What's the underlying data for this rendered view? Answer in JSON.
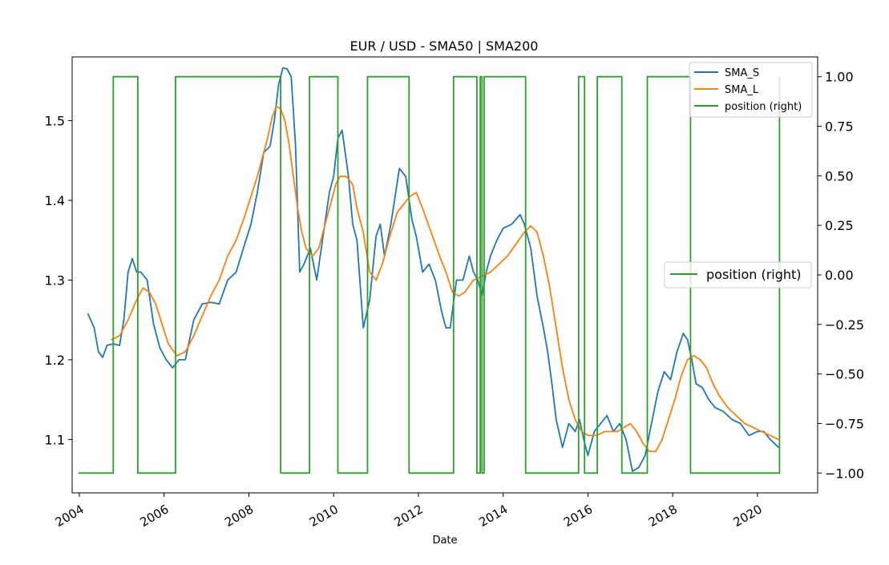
{
  "chart_data": {
    "type": "line",
    "title": "EUR / USD - SMA50 | SMA200",
    "xlabel": "Date",
    "ylabel": "",
    "x_ticks": [
      "2004",
      "2006",
      "2008",
      "2010",
      "2012",
      "2014",
      "2016",
      "2018",
      "2020"
    ],
    "y_ticks": [
      "1.1",
      "1.2",
      "1.3",
      "1.4",
      "1.5"
    ],
    "y2_ticks": [
      "−1.00",
      "−0.75",
      "−0.50",
      "−0.25",
      "0.00",
      "0.25",
      "0.50",
      "0.75",
      "1.00"
    ],
    "xlim": [
      2003.83,
      2021.42
    ],
    "ylim": [
      1.033,
      1.58
    ],
    "y2lim": [
      -1.1,
      1.1
    ],
    "grid": false,
    "legend_main": {
      "position": "upper right",
      "entries": [
        "SMA_S",
        "SMA_L",
        "position (right)"
      ]
    },
    "legend_secondary": {
      "position": "center right",
      "entries": [
        "position (right)"
      ]
    },
    "colors": {
      "SMA_S": "#1f77b4",
      "SMA_L": "#ff7f0e",
      "position": "#2ca02c"
    },
    "series": [
      {
        "name": "SMA_S",
        "axis": "left",
        "x": [
          2004.2,
          2004.35,
          2004.45,
          2004.55,
          2004.65,
          2004.8,
          2004.95,
          2005.05,
          2005.15,
          2005.25,
          2005.35,
          2005.45,
          2005.6,
          2005.75,
          2005.9,
          2006.05,
          2006.2,
          2006.35,
          2006.5,
          2006.7,
          2006.9,
          2007.1,
          2007.3,
          2007.5,
          2007.7,
          2007.9,
          2008.05,
          2008.2,
          2008.35,
          2008.5,
          2008.6,
          2008.7,
          2008.8,
          2008.9,
          2009.0,
          2009.1,
          2009.2,
          2009.3,
          2009.45,
          2009.6,
          2009.75,
          2009.9,
          2010.0,
          2010.1,
          2010.2,
          2010.35,
          2010.45,
          2010.55,
          2010.7,
          2010.85,
          2011.0,
          2011.1,
          2011.2,
          2011.35,
          2011.55,
          2011.7,
          2011.85,
          2011.95,
          2012.1,
          2012.25,
          2012.4,
          2012.55,
          2012.65,
          2012.75,
          2012.9,
          2013.05,
          2013.2,
          2013.3,
          2013.4,
          2013.5,
          2013.6,
          2013.7,
          2013.85,
          2014.0,
          2014.2,
          2014.4,
          2014.5,
          2014.65,
          2014.8,
          2014.95,
          2015.05,
          2015.15,
          2015.25,
          2015.4,
          2015.55,
          2015.7,
          2015.8,
          2015.9,
          2016.0,
          2016.15,
          2016.3,
          2016.45,
          2016.6,
          2016.75,
          2016.9,
          2017.05,
          2017.2,
          2017.35,
          2017.5,
          2017.65,
          2017.8,
          2017.95,
          2018.1,
          2018.25,
          2018.35,
          2018.45,
          2018.55,
          2018.7,
          2018.85,
          2019.0,
          2019.2,
          2019.4,
          2019.6,
          2019.8,
          2020.0,
          2020.15,
          2020.3,
          2020.4,
          2020.5
        ],
        "values": [
          1.258,
          1.24,
          1.21,
          1.203,
          1.218,
          1.22,
          1.218,
          1.25,
          1.31,
          1.327,
          1.31,
          1.31,
          1.3,
          1.245,
          1.215,
          1.2,
          1.19,
          1.2,
          1.2,
          1.25,
          1.27,
          1.272,
          1.27,
          1.3,
          1.31,
          1.345,
          1.37,
          1.41,
          1.46,
          1.468,
          1.5,
          1.545,
          1.566,
          1.565,
          1.555,
          1.47,
          1.31,
          1.32,
          1.34,
          1.3,
          1.355,
          1.41,
          1.43,
          1.478,
          1.488,
          1.43,
          1.37,
          1.35,
          1.24,
          1.275,
          1.355,
          1.37,
          1.33,
          1.37,
          1.44,
          1.43,
          1.375,
          1.355,
          1.31,
          1.32,
          1.3,
          1.26,
          1.24,
          1.24,
          1.3,
          1.3,
          1.33,
          1.31,
          1.3,
          1.28,
          1.31,
          1.33,
          1.35,
          1.365,
          1.37,
          1.382,
          1.37,
          1.34,
          1.28,
          1.24,
          1.21,
          1.17,
          1.125,
          1.09,
          1.12,
          1.11,
          1.125,
          1.1,
          1.08,
          1.11,
          1.12,
          1.13,
          1.11,
          1.12,
          1.1,
          1.06,
          1.065,
          1.08,
          1.12,
          1.16,
          1.185,
          1.175,
          1.21,
          1.233,
          1.225,
          1.2,
          1.17,
          1.165,
          1.15,
          1.14,
          1.135,
          1.125,
          1.12,
          1.105,
          1.11,
          1.11,
          1.1,
          1.095,
          1.09
        ]
      },
      {
        "name": "SMA_L",
        "axis": "left",
        "x": [
          2004.75,
          2004.95,
          2005.15,
          2005.35,
          2005.5,
          2005.65,
          2005.8,
          2005.95,
          2006.1,
          2006.3,
          2006.5,
          2006.7,
          2006.9,
          2007.1,
          2007.3,
          2007.5,
          2007.7,
          2007.9,
          2008.05,
          2008.2,
          2008.35,
          2008.45,
          2008.55,
          2008.65,
          2008.75,
          2008.85,
          2008.95,
          2009.05,
          2009.15,
          2009.25,
          2009.35,
          2009.5,
          2009.65,
          2009.8,
          2009.95,
          2010.05,
          2010.15,
          2010.3,
          2010.45,
          2010.55,
          2010.7,
          2010.85,
          2011.0,
          2011.15,
          2011.3,
          2011.5,
          2011.65,
          2011.8,
          2011.95,
          2012.1,
          2012.3,
          2012.5,
          2012.65,
          2012.8,
          2012.95,
          2013.1,
          2013.3,
          2013.5,
          2013.7,
          2013.9,
          2014.1,
          2014.3,
          2014.5,
          2014.65,
          2014.8,
          2014.95,
          2015.1,
          2015.25,
          2015.4,
          2015.55,
          2015.7,
          2015.85,
          2016.0,
          2016.2,
          2016.4,
          2016.55,
          2016.7,
          2016.85,
          2017.0,
          2017.15,
          2017.3,
          2017.45,
          2017.6,
          2017.75,
          2017.9,
          2018.05,
          2018.2,
          2018.35,
          2018.5,
          2018.65,
          2018.8,
          2018.95,
          2019.1,
          2019.3,
          2019.5,
          2019.7,
          2019.9,
          2020.1,
          2020.3,
          2020.5
        ],
        "values": [
          1.225,
          1.23,
          1.25,
          1.275,
          1.29,
          1.285,
          1.27,
          1.245,
          1.22,
          1.205,
          1.21,
          1.23,
          1.255,
          1.28,
          1.3,
          1.33,
          1.35,
          1.38,
          1.405,
          1.43,
          1.46,
          1.48,
          1.505,
          1.518,
          1.515,
          1.5,
          1.47,
          1.43,
          1.39,
          1.36,
          1.34,
          1.33,
          1.34,
          1.37,
          1.4,
          1.42,
          1.43,
          1.43,
          1.42,
          1.39,
          1.36,
          1.31,
          1.3,
          1.32,
          1.35,
          1.385,
          1.395,
          1.405,
          1.41,
          1.39,
          1.36,
          1.33,
          1.31,
          1.285,
          1.28,
          1.285,
          1.3,
          1.305,
          1.31,
          1.32,
          1.33,
          1.345,
          1.36,
          1.368,
          1.36,
          1.33,
          1.29,
          1.24,
          1.19,
          1.15,
          1.125,
          1.11,
          1.105,
          1.105,
          1.11,
          1.11,
          1.11,
          1.115,
          1.12,
          1.11,
          1.095,
          1.085,
          1.085,
          1.1,
          1.125,
          1.15,
          1.18,
          1.2,
          1.205,
          1.2,
          1.19,
          1.17,
          1.155,
          1.14,
          1.13,
          1.12,
          1.115,
          1.11,
          1.105,
          1.1
        ]
      },
      {
        "name": "position",
        "axis": "right",
        "step": true,
        "x": [
          2003.98,
          2004.8,
          2004.8,
          2005.38,
          2005.38,
          2006.27,
          2006.27,
          2008.75,
          2008.75,
          2009.43,
          2009.43,
          2010.1,
          2010.1,
          2010.8,
          2010.8,
          2011.78,
          2011.78,
          2012.83,
          2012.83,
          2013.38,
          2013.38,
          2013.46,
          2013.46,
          2013.5,
          2013.5,
          2013.55,
          2013.55,
          2014.53,
          2014.53,
          2015.78,
          2015.78,
          2015.92,
          2015.92,
          2016.22,
          2016.22,
          2016.8,
          2016.8,
          2017.4,
          2017.4,
          2018.42,
          2018.42,
          2020.52,
          2020.52
        ],
        "values": [
          -1,
          -1,
          1,
          1,
          -1,
          -1,
          1,
          1,
          -1,
          -1,
          1,
          1,
          -1,
          -1,
          1,
          1,
          -1,
          -1,
          1,
          1,
          -1,
          -1,
          1,
          1,
          -1,
          -1,
          1,
          1,
          -1,
          -1,
          1,
          1,
          -1,
          -1,
          1,
          1,
          -1,
          -1,
          1,
          1,
          -1,
          -1,
          1
        ]
      }
    ]
  }
}
